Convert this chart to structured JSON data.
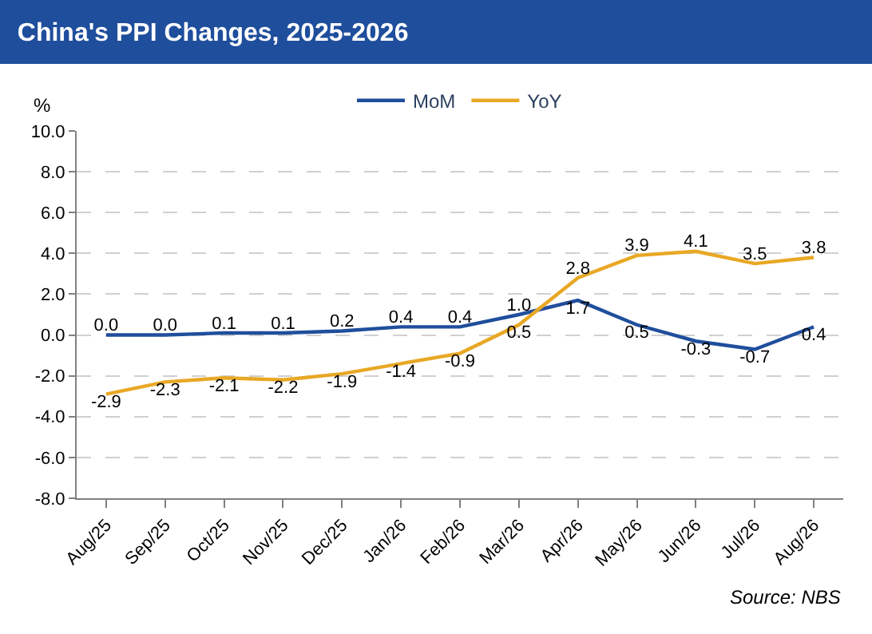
{
  "chart_data": {
    "type": "line",
    "title": "China's PPI Changes, 2025-2026",
    "ylabel": "%",
    "categories": [
      "Aug/25",
      "Sep/25",
      "Oct/25",
      "Nov/25",
      "Dec/25",
      "Jan/26",
      "Feb/26",
      "Mar/26",
      "Apr/26",
      "May/26",
      "Jun/26",
      "Jul/26",
      "Aug/26"
    ],
    "series": [
      {
        "name": "MoM",
        "color": "#1f4e9c",
        "values": [
          0.0,
          0.0,
          0.1,
          0.1,
          0.2,
          0.4,
          0.4,
          1.0,
          1.7,
          0.5,
          -0.3,
          -0.7,
          0.4
        ],
        "value_labels": [
          "0.0",
          "0.0",
          "0.1",
          "0.1",
          "0.2",
          "0.4",
          "0.4",
          "1.0",
          "1.7",
          "0.5",
          "-0.3",
          "-0.7",
          "0.4"
        ]
      },
      {
        "name": "YoY",
        "color": "#e8a825",
        "values": [
          -2.9,
          -2.3,
          -2.1,
          -2.2,
          -1.9,
          -1.4,
          -0.9,
          0.5,
          2.8,
          3.9,
          4.1,
          3.5,
          3.8
        ],
        "value_labels": [
          "-2.9",
          "-2.3",
          "-2.1",
          "-2.2",
          "-1.9",
          "-1.4",
          "-0.9",
          "0.5",
          "2.8",
          "3.9",
          "4.1",
          "3.5",
          "3.8"
        ]
      }
    ],
    "ylim": [
      -8,
      10
    ],
    "yticks": [
      {
        "value": -8,
        "label": "-8.0"
      },
      {
        "value": -6,
        "label": "-6.0"
      },
      {
        "value": -4,
        "label": "-4.0"
      },
      {
        "value": -2,
        "label": "-2.0"
      },
      {
        "value": 0,
        "label": "0.0"
      },
      {
        "value": 2,
        "label": "2.0"
      },
      {
        "value": 4,
        "label": "4.0"
      },
      {
        "value": 6,
        "label": "6.0"
      },
      {
        "value": 8,
        "label": "8.0"
      },
      {
        "value": 10,
        "label": "10.0"
      }
    ],
    "grid": "y",
    "legend": "top",
    "marker": "none",
    "line_style": "solid",
    "annotations": [
      "Source: NBS"
    ]
  }
}
